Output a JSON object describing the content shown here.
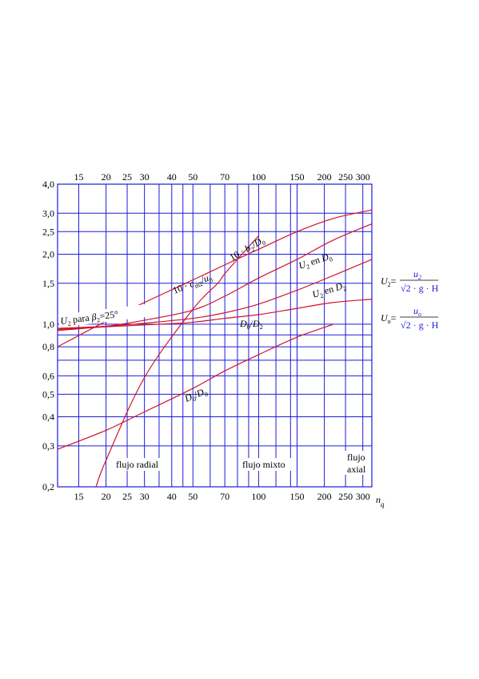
{
  "chart_data": {
    "type": "line",
    "title": "",
    "xlabel": "n_q",
    "ylabel": "",
    "x_scale": "log",
    "y_scale": "log",
    "xlim": [
      12,
      330
    ],
    "ylim": [
      0.2,
      4.0
    ],
    "grid": true,
    "x_ticks": [
      15,
      20,
      25,
      30,
      40,
      50,
      70,
      100,
      150,
      200,
      250,
      300
    ],
    "x_tick_labels": [
      "15",
      "20",
      "25",
      "30",
      "40",
      "50",
      "70",
      "100",
      "150",
      "200",
      "250",
      "300"
    ],
    "x_minor_grid": [
      35,
      45,
      60,
      80,
      90,
      120,
      140
    ],
    "y_ticks": [
      0.2,
      0.3,
      0.4,
      0.5,
      0.6,
      0.8,
      1.0,
      1.5,
      2.0,
      2.5,
      3.0,
      4.0
    ],
    "y_tick_labels": [
      "0,2",
      "0,3",
      "0,4",
      "0,5",
      "0,6",
      "0,8",
      "1,0",
      "1,5",
      "2,0",
      "2,5",
      "3,0",
      "4,0"
    ],
    "y_minor_grid": [
      0.7,
      0.9
    ],
    "series": [
      {
        "name": "10·b2/D0",
        "points": [
          [
            12,
            0.8
          ],
          [
            20,
            1.03
          ],
          [
            30,
            1.24
          ],
          [
            45,
            1.48
          ],
          [
            70,
            1.8
          ],
          [
            100,
            2.1
          ],
          [
            150,
            2.5
          ],
          [
            220,
            2.85
          ],
          [
            330,
            3.1
          ]
        ]
      },
      {
        "name": "U2 en D0",
        "points": [
          [
            12,
            0.94
          ],
          [
            20,
            0.98
          ],
          [
            30,
            1.04
          ],
          [
            50,
            1.15
          ],
          [
            70,
            1.32
          ],
          [
            100,
            1.58
          ],
          [
            150,
            1.9
          ],
          [
            220,
            2.3
          ],
          [
            330,
            2.7
          ]
        ]
      },
      {
        "name": "U2 en D2",
        "points": [
          [
            12,
            0.96
          ],
          [
            20,
            0.98
          ],
          [
            30,
            1.01
          ],
          [
            50,
            1.06
          ],
          [
            70,
            1.12
          ],
          [
            100,
            1.22
          ],
          [
            150,
            1.4
          ],
          [
            220,
            1.62
          ],
          [
            330,
            1.9
          ]
        ]
      },
      {
        "name": "D0/D2",
        "points": [
          [
            12,
            0.95
          ],
          [
            20,
            0.975
          ],
          [
            35,
            1.0
          ],
          [
            50,
            1.02
          ],
          [
            70,
            1.06
          ],
          [
            100,
            1.1
          ],
          [
            150,
            1.17
          ],
          [
            220,
            1.24
          ],
          [
            330,
            1.28
          ]
        ]
      },
      {
        "name": "10·cm2/u0",
        "points": [
          [
            18,
            0.2
          ],
          [
            20,
            0.26
          ],
          [
            30,
            0.59
          ],
          [
            50,
            1.16
          ],
          [
            65,
            1.5
          ],
          [
            70,
            1.65
          ],
          [
            90,
            2.15
          ],
          [
            100,
            2.4
          ]
        ]
      },
      {
        "name": "D0/D0",
        "points": [
          [
            12,
            0.29
          ],
          [
            20,
            0.35
          ],
          [
            30,
            0.42
          ],
          [
            50,
            0.53
          ],
          [
            70,
            0.63
          ],
          [
            100,
            0.74
          ],
          [
            150,
            0.88
          ],
          [
            220,
            1.0
          ]
        ]
      }
    ],
    "annotations": {
      "b2": {
        "pre": "10 · ",
        "sym": "b",
        "sub": "2",
        "post": "/",
        "sym2": "D",
        "sub2": "0"
      },
      "cm2": {
        "pre": "10 · ",
        "sym": "c",
        "sub": "m2",
        "post": "/",
        "sym2": "u",
        "sub2": "0"
      },
      "u2d0": {
        "sym": "U",
        "sub": "2",
        "mid": " en ",
        "sym2": "D",
        "sub2": "0"
      },
      "u2d2": {
        "sym": "U",
        "sub": "2",
        "mid": " en ",
        "sym2": "D",
        "sub2": "2"
      },
      "d0d2": {
        "sym": "D",
        "sub": "0",
        "post": "/",
        "sym2": "D",
        "sub2": "2"
      },
      "d0d0": {
        "sym": "D",
        "sub": "0",
        "post": "/",
        "sym2": "D",
        "sub2": "0"
      },
      "u2para": {
        "sym": "U",
        "sub": "2",
        "mid": " para ",
        "sym2": "β",
        "sub2": "2",
        "post": "=25°"
      }
    },
    "regions": {
      "radial": "flujo radial",
      "mixto": "flujo mixto",
      "axial_line1": "flujo",
      "axial_line2": "axial"
    },
    "equations": {
      "u2": {
        "lhs": "U",
        "lhs_sub": "2",
        "eq": "=",
        "num": "u",
        "num_sub": "2",
        "den": "√2 · g · H"
      },
      "u0": {
        "lhs": "U",
        "lhs_sub": "o",
        "eq": "=",
        "num": "u",
        "num_sub": "o",
        "den": "√2 · g · H"
      }
    },
    "colors": {
      "grid": "#1c1cdc",
      "curves": "#d0142c",
      "text": "#000000"
    }
  }
}
